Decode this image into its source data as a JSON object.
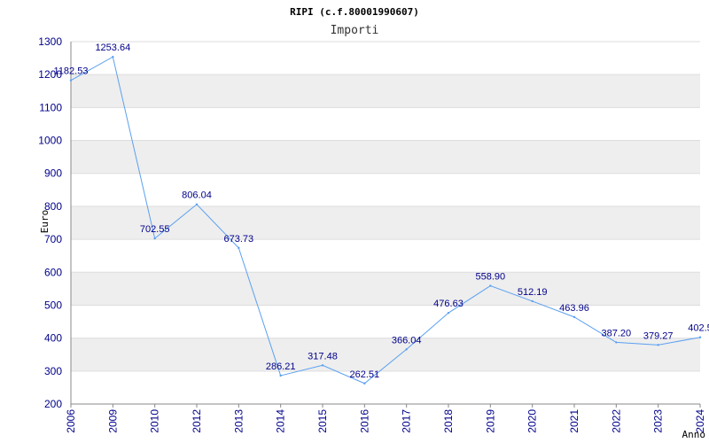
{
  "chart_data": {
    "type": "line",
    "title": "RIPI (c.f.80001990607)",
    "subtitle": "Importi",
    "ylabel": "Euro",
    "xlabel": "Anno",
    "ylim": [
      200,
      1300
    ],
    "yticks": [
      200,
      300,
      400,
      500,
      600,
      700,
      800,
      900,
      1000,
      1100,
      1200,
      1300
    ],
    "grid": "horizontal bands",
    "categories": [
      "2006",
      "2009",
      "2010",
      "2012",
      "2013",
      "2014",
      "2015",
      "2016",
      "2017",
      "2018",
      "2019",
      "2020",
      "2021",
      "2022",
      "2023",
      "2024"
    ],
    "series": [
      {
        "values": [
          1182.53,
          1253.64,
          702.55,
          806.04,
          673.73,
          286.21,
          317.48,
          262.51,
          366.04,
          476.63,
          558.9,
          512.19,
          463.96,
          387.2,
          379.27,
          402.5
        ],
        "labels": [
          "1182.53",
          "1253.64",
          "702.55",
          "806.04",
          "673.73",
          "286.21",
          "317.48",
          "262.51",
          "366.04",
          "476.63",
          "558.90",
          "512.19",
          "463.96",
          "387.20",
          "379.27",
          "402.5"
        ],
        "color": "#5aa0f0"
      }
    ]
  },
  "colors": {
    "band": "#eeeeee",
    "gridline": "#dddddd",
    "tick_text": "#00008b",
    "line": "#5aa0f0"
  }
}
